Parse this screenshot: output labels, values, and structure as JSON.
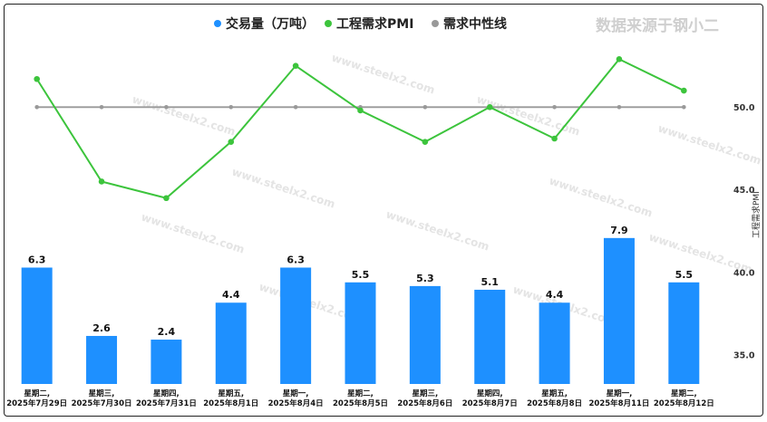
{
  "chart_data": {
    "type": "bar+line",
    "categories": [
      [
        "星期二,",
        "2025年7月29日"
      ],
      [
        "星期三,",
        "2025年7月30日"
      ],
      [
        "星期四,",
        "2025年7月31日"
      ],
      [
        "星期五,",
        "2025年8月1日"
      ],
      [
        "星期一,",
        "2025年8月4日"
      ],
      [
        "星期二,",
        "2025年8月5日"
      ],
      [
        "星期三,",
        "2025年8月6日"
      ],
      [
        "星期四,",
        "2025年8月7日"
      ],
      [
        "星期五,",
        "2025年8月8日"
      ],
      [
        "星期一,",
        "2025年8月11日"
      ],
      [
        "星期二,",
        "2025年8月12日"
      ]
    ],
    "series": [
      {
        "name": "交易量（万吨）",
        "kind": "bar",
        "color": "#1e90ff",
        "values": [
          6.3,
          2.6,
          2.4,
          4.4,
          6.3,
          5.5,
          5.3,
          5.1,
          4.4,
          7.9,
          5.5
        ],
        "labels": [
          "6.3",
          "2.6",
          "2.4",
          "4.4",
          "6.3",
          "5.5",
          "5.3",
          "5.1",
          "4.4",
          "7.9",
          "5.5"
        ]
      },
      {
        "name": "工程需求PMI",
        "kind": "line",
        "color": "#3cc43c",
        "values": [
          51.7,
          45.5,
          44.5,
          47.9,
          52.5,
          49.8,
          47.9,
          50.0,
          48.1,
          52.9,
          51.0
        ]
      },
      {
        "name": "需求中性线",
        "kind": "line",
        "color": "#999999",
        "values": [
          50,
          50,
          50,
          50,
          50,
          50,
          50,
          50,
          50,
          50,
          50
        ]
      }
    ],
    "y_right": {
      "label": "工程需求PMI",
      "ticks": [
        "35.0",
        "40.0",
        "45.0",
        "50.0"
      ],
      "range": [
        32.0,
        55.0
      ]
    },
    "bar_range": [
      0,
      10
    ],
    "grid": false,
    "legend_position": "top-center",
    "source": "数据来源于钢小二",
    "watermark": "www.steelx2.com"
  }
}
